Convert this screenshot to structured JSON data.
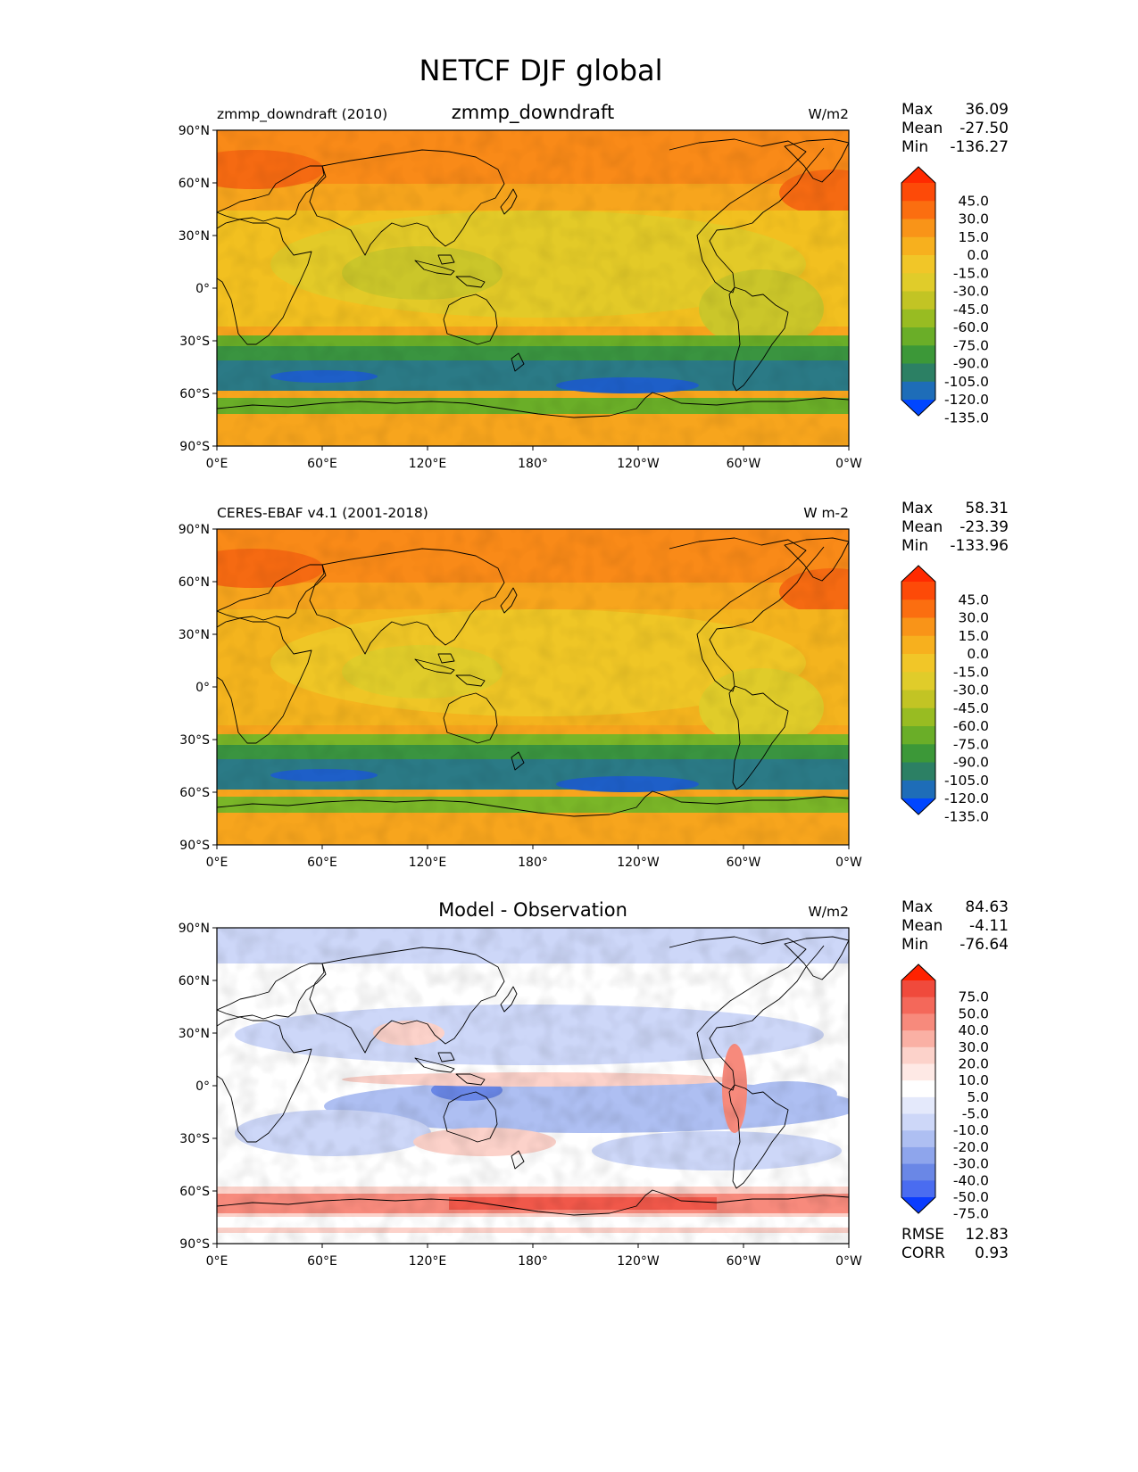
{
  "figure": {
    "title": "NETCF DJF global"
  },
  "axes": {
    "lat_ticks": [
      "90°N",
      "60°N",
      "30°N",
      "0°",
      "30°S",
      "60°S",
      "90°S"
    ],
    "lon_ticks": [
      "0°E",
      "60°E",
      "120°E",
      "180°",
      "120°W",
      "60°W",
      "0°W"
    ]
  },
  "panels": [
    {
      "left_title": "zmmp_downdraft (2010)",
      "center_title": "zmmp_downdraft",
      "units": "W/m2",
      "stats": [
        {
          "label": "Max",
          "value": "36.09"
        },
        {
          "label": "Mean",
          "value": "-27.50"
        },
        {
          "label": "Min",
          "value": "-136.27"
        }
      ],
      "colorbar": {
        "labels": [
          "45.0",
          "30.0",
          "15.0",
          "0.0",
          "-15.0",
          "-30.0",
          "-45.0",
          "-60.0",
          "-75.0",
          "-90.0",
          "-105.0",
          "-120.0",
          "-135.0"
        ],
        "colors": [
          "#ff2a00",
          "#fd4a08",
          "#fb6e10",
          "#f99418",
          "#f7b01e",
          "#f1c628",
          "#e0cc2a",
          "#c2c424",
          "#98bc22",
          "#6aae28",
          "#3c9838",
          "#2c8064",
          "#1e6db8",
          "#0046ff"
        ]
      },
      "map_palette": {
        "land": "#f7a51d",
        "arctic": "#f98a18",
        "arctic_hot": "#f56a12",
        "subtropics": "#f2c020",
        "tropics": "#e3ca28",
        "tropics_dry": "#cbc62a",
        "storm_edge": "#6aae28",
        "storm": "#3a9440",
        "storm_core": "#2b7a86",
        "storm_peak": "#1e5fc8"
      }
    },
    {
      "left_title": "CERES-EBAF v4.1 (2001-2018)",
      "center_title": "",
      "units": "W m-2",
      "stats": [
        {
          "label": "Max",
          "value": "58.31"
        },
        {
          "label": "Mean",
          "value": "-23.39"
        },
        {
          "label": "Min",
          "value": "-133.96"
        }
      ],
      "colorbar": {
        "labels": [
          "45.0",
          "30.0",
          "15.0",
          "0.0",
          "-15.0",
          "-30.0",
          "-45.0",
          "-60.0",
          "-75.0",
          "-90.0",
          "-105.0",
          "-120.0",
          "-135.0"
        ],
        "colors": [
          "#ff2a00",
          "#fd4a08",
          "#fb6e10",
          "#f99418",
          "#f7b01e",
          "#f1c628",
          "#e0cc2a",
          "#c2c424",
          "#98bc22",
          "#6aae28",
          "#3c9838",
          "#2c8064",
          "#1e6db8",
          "#0046ff"
        ]
      },
      "map_palette": {
        "land": "#f7a51d",
        "arctic": "#f98a18",
        "arctic_hot": "#f56a12",
        "subtropics": "#f4b41e",
        "tropics": "#efc626",
        "tropics_dry": "#e0cc2a",
        "storm_edge": "#7ab628",
        "storm": "#3a9440",
        "storm_core": "#2b7a86",
        "storm_peak": "#1e5fc8"
      }
    },
    {
      "left_title": "",
      "center_title": "Model - Observation",
      "units": "W/m2",
      "stats": [
        {
          "label": "Max",
          "value": "84.63"
        },
        {
          "label": "Mean",
          "value": "-4.11"
        },
        {
          "label": "Min",
          "value": "-76.64"
        }
      ],
      "extra_stats": [
        {
          "label": "RMSE",
          "value": "12.83"
        },
        {
          "label": "CORR",
          "value": "0.93"
        }
      ],
      "colorbar": {
        "labels": [
          "75.0",
          "50.0",
          "40.0",
          "30.0",
          "20.0",
          "10.0",
          "5.0",
          "-5.0",
          "-10.0",
          "-20.0",
          "-30.0",
          "-40.0",
          "-50.0",
          "-75.0"
        ],
        "colors": [
          "#ff2200",
          "#f04a3c",
          "#f4685a",
          "#f78a7c",
          "#fab0a4",
          "#fcd2ca",
          "#fee9e5",
          "#ffffff",
          "#e4e9fb",
          "#cdd7f8",
          "#aebff2",
          "#8ea5ec",
          "#6a87e6",
          "#4a6cf0",
          "#0a3cff"
        ]
      },
      "map_palette": {
        "background": "#ffffff",
        "blue_light": "#cdd7f8",
        "blue": "#aebff2",
        "blue_dark": "#6a87e6",
        "red_light": "#fcd2ca",
        "red": "#f78a7c",
        "red_dark": "#f0584a"
      }
    }
  ]
}
